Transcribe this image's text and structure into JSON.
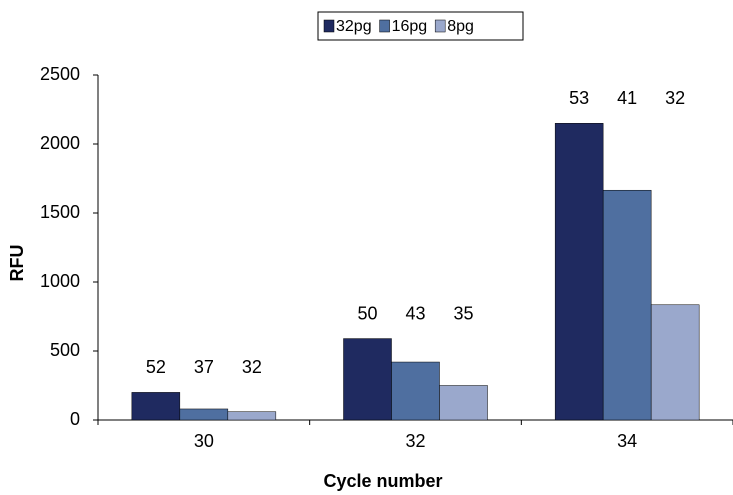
{
  "chart_data": {
    "type": "bar",
    "x_label": "Cycle number",
    "y_label": "RFU",
    "categories": [
      "30",
      "32",
      "34"
    ],
    "series": [
      {
        "name": "32pg",
        "color": "#1f2a60",
        "values": [
          200,
          590,
          2150
        ],
        "annotations": [
          52,
          50,
          53
        ]
      },
      {
        "name": "16pg",
        "color": "#4f6fa0",
        "values": [
          80,
          420,
          1665
        ],
        "annotations": [
          37,
          43,
          41
        ]
      },
      {
        "name": "8pg",
        "color": "#9aa8cc",
        "values": [
          60,
          250,
          835
        ],
        "annotations": [
          32,
          35,
          32
        ]
      }
    ],
    "ylim": [
      0,
      2500
    ],
    "yticks": [
      0,
      500,
      1000,
      1500,
      2000,
      2500
    ],
    "legend": "top"
  }
}
